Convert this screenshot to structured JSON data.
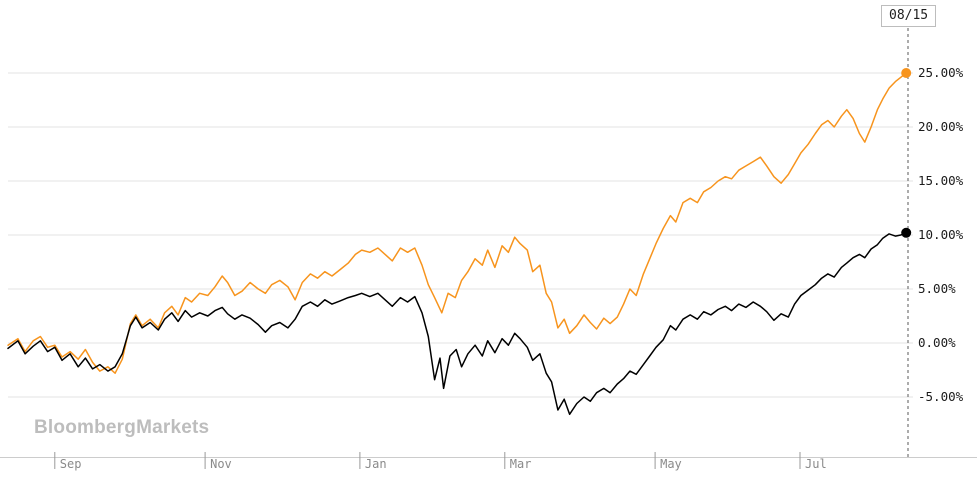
{
  "watermark": "BloombergMarkets",
  "colors": {
    "series_orange": "#f7941d",
    "series_black": "#000000",
    "grid": "#e3e3e3",
    "axis_line": "#cccccc",
    "tick_mark": "#9a9a9a",
    "x_tick_text": "#8a8a8a",
    "y_tick_text": "#1b1b1b",
    "cursor_line": "#5a5a5a",
    "watermark": "#bdbdbd"
  },
  "chart_data": {
    "type": "line",
    "title": "",
    "legend_position": "none",
    "grid": "horizontal",
    "cursor_date": "08/15",
    "y_axis": {
      "side": "right",
      "unit": "%",
      "range": [
        -8.5,
        28.5
      ],
      "ticks": [
        {
          "label": "25.00%",
          "value": 25
        },
        {
          "label": "20.00%",
          "value": 20
        },
        {
          "label": "15.00%",
          "value": 15
        },
        {
          "label": "10.00%",
          "value": 10
        },
        {
          "label": "5.00%",
          "value": 5
        },
        {
          "label": "0.00%",
          "value": 0
        },
        {
          "label": "-5.00%",
          "value": -5
        }
      ]
    },
    "x_axis": {
      "ticks": [
        {
          "label": "Sep",
          "x": 0.052
        },
        {
          "label": "Nov",
          "x": 0.219
        },
        {
          "label": "Jan",
          "x": 0.391
        },
        {
          "label": "Mar",
          "x": 0.552
        },
        {
          "label": "May",
          "x": 0.719
        },
        {
          "label": "Jul",
          "x": 0.88
        }
      ]
    },
    "series": [
      {
        "name": "orange",
        "color": "#f7941d",
        "end_value_pct": 25.0,
        "points": [
          [
            0.0,
            -0.2
          ],
          [
            0.011,
            0.4
          ],
          [
            0.019,
            -0.8
          ],
          [
            0.028,
            0.2
          ],
          [
            0.036,
            0.6
          ],
          [
            0.044,
            -0.4
          ],
          [
            0.052,
            -0.2
          ],
          [
            0.06,
            -1.3
          ],
          [
            0.069,
            -0.8
          ],
          [
            0.078,
            -1.5
          ],
          [
            0.086,
            -0.6
          ],
          [
            0.094,
            -1.8
          ],
          [
            0.102,
            -2.6
          ],
          [
            0.111,
            -2.2
          ],
          [
            0.119,
            -2.8
          ],
          [
            0.127,
            -1.5
          ],
          [
            0.136,
            1.8
          ],
          [
            0.142,
            2.6
          ],
          [
            0.149,
            1.6
          ],
          [
            0.158,
            2.2
          ],
          [
            0.167,
            1.4
          ],
          [
            0.174,
            2.8
          ],
          [
            0.182,
            3.4
          ],
          [
            0.189,
            2.6
          ],
          [
            0.197,
            4.2
          ],
          [
            0.204,
            3.8
          ],
          [
            0.213,
            4.6
          ],
          [
            0.222,
            4.4
          ],
          [
            0.23,
            5.2
          ],
          [
            0.238,
            6.2
          ],
          [
            0.244,
            5.6
          ],
          [
            0.252,
            4.4
          ],
          [
            0.26,
            4.8
          ],
          [
            0.269,
            5.6
          ],
          [
            0.278,
            5.0
          ],
          [
            0.286,
            4.6
          ],
          [
            0.293,
            5.4
          ],
          [
            0.302,
            5.8
          ],
          [
            0.311,
            5.2
          ],
          [
            0.319,
            4.0
          ],
          [
            0.327,
            5.6
          ],
          [
            0.336,
            6.4
          ],
          [
            0.344,
            6.0
          ],
          [
            0.352,
            6.6
          ],
          [
            0.36,
            6.2
          ],
          [
            0.369,
            6.8
          ],
          [
            0.378,
            7.4
          ],
          [
            0.386,
            8.2
          ],
          [
            0.393,
            8.6
          ],
          [
            0.402,
            8.4
          ],
          [
            0.411,
            8.8
          ],
          [
            0.419,
            8.2
          ],
          [
            0.427,
            7.6
          ],
          [
            0.436,
            8.8
          ],
          [
            0.444,
            8.4
          ],
          [
            0.452,
            8.8
          ],
          [
            0.46,
            7.2
          ],
          [
            0.467,
            5.4
          ],
          [
            0.474,
            4.2
          ],
          [
            0.482,
            2.8
          ],
          [
            0.489,
            4.6
          ],
          [
            0.497,
            4.2
          ],
          [
            0.504,
            5.8
          ],
          [
            0.511,
            6.6
          ],
          [
            0.519,
            7.8
          ],
          [
            0.527,
            7.2
          ],
          [
            0.533,
            8.6
          ],
          [
            0.541,
            7.0
          ],
          [
            0.549,
            9.0
          ],
          [
            0.556,
            8.4
          ],
          [
            0.563,
            9.8
          ],
          [
            0.569,
            9.2
          ],
          [
            0.577,
            8.6
          ],
          [
            0.583,
            6.6
          ],
          [
            0.591,
            7.2
          ],
          [
            0.598,
            4.6
          ],
          [
            0.604,
            3.8
          ],
          [
            0.611,
            1.4
          ],
          [
            0.618,
            2.2
          ],
          [
            0.624,
            0.9
          ],
          [
            0.632,
            1.6
          ],
          [
            0.64,
            2.6
          ],
          [
            0.647,
            1.9
          ],
          [
            0.654,
            1.3
          ],
          [
            0.662,
            2.3
          ],
          [
            0.669,
            1.8
          ],
          [
            0.677,
            2.4
          ],
          [
            0.684,
            3.6
          ],
          [
            0.691,
            5.0
          ],
          [
            0.698,
            4.4
          ],
          [
            0.706,
            6.4
          ],
          [
            0.713,
            7.8
          ],
          [
            0.72,
            9.2
          ],
          [
            0.728,
            10.6
          ],
          [
            0.736,
            11.8
          ],
          [
            0.742,
            11.2
          ],
          [
            0.75,
            13.0
          ],
          [
            0.758,
            13.4
          ],
          [
            0.766,
            13.0
          ],
          [
            0.773,
            14.0
          ],
          [
            0.781,
            14.4
          ],
          [
            0.789,
            15.0
          ],
          [
            0.797,
            15.4
          ],
          [
            0.804,
            15.2
          ],
          [
            0.812,
            16.0
          ],
          [
            0.82,
            16.4
          ],
          [
            0.828,
            16.8
          ],
          [
            0.836,
            17.2
          ],
          [
            0.843,
            16.4
          ],
          [
            0.851,
            15.4
          ],
          [
            0.859,
            14.8
          ],
          [
            0.867,
            15.6
          ],
          [
            0.874,
            16.6
          ],
          [
            0.881,
            17.6
          ],
          [
            0.889,
            18.4
          ],
          [
            0.897,
            19.4
          ],
          [
            0.904,
            20.2
          ],
          [
            0.911,
            20.6
          ],
          [
            0.918,
            20.0
          ],
          [
            0.926,
            21.0
          ],
          [
            0.932,
            21.6
          ],
          [
            0.939,
            20.8
          ],
          [
            0.946,
            19.4
          ],
          [
            0.952,
            18.6
          ],
          [
            0.959,
            20.0
          ],
          [
            0.966,
            21.6
          ],
          [
            0.972,
            22.6
          ],
          [
            0.979,
            23.6
          ],
          [
            0.986,
            24.2
          ],
          [
            0.992,
            24.6
          ],
          [
            0.998,
            25.0
          ]
        ]
      },
      {
        "name": "black",
        "color": "#000000",
        "end_value_pct": 10.2,
        "points": [
          [
            0.0,
            -0.5
          ],
          [
            0.011,
            0.2
          ],
          [
            0.019,
            -1.0
          ],
          [
            0.028,
            -0.3
          ],
          [
            0.036,
            0.2
          ],
          [
            0.044,
            -0.8
          ],
          [
            0.052,
            -0.4
          ],
          [
            0.06,
            -1.6
          ],
          [
            0.069,
            -1.0
          ],
          [
            0.078,
            -2.2
          ],
          [
            0.086,
            -1.4
          ],
          [
            0.094,
            -2.4
          ],
          [
            0.102,
            -2.0
          ],
          [
            0.111,
            -2.6
          ],
          [
            0.119,
            -2.2
          ],
          [
            0.127,
            -1.0
          ],
          [
            0.136,
            1.6
          ],
          [
            0.142,
            2.4
          ],
          [
            0.149,
            1.4
          ],
          [
            0.158,
            1.9
          ],
          [
            0.167,
            1.2
          ],
          [
            0.174,
            2.2
          ],
          [
            0.182,
            2.8
          ],
          [
            0.189,
            2.0
          ],
          [
            0.197,
            3.0
          ],
          [
            0.204,
            2.4
          ],
          [
            0.213,
            2.8
          ],
          [
            0.222,
            2.5
          ],
          [
            0.23,
            3.0
          ],
          [
            0.238,
            3.3
          ],
          [
            0.244,
            2.7
          ],
          [
            0.252,
            2.2
          ],
          [
            0.26,
            2.6
          ],
          [
            0.269,
            2.3
          ],
          [
            0.278,
            1.7
          ],
          [
            0.286,
            1.0
          ],
          [
            0.293,
            1.6
          ],
          [
            0.302,
            1.9
          ],
          [
            0.311,
            1.4
          ],
          [
            0.319,
            2.2
          ],
          [
            0.327,
            3.4
          ],
          [
            0.336,
            3.8
          ],
          [
            0.344,
            3.4
          ],
          [
            0.352,
            4.0
          ],
          [
            0.36,
            3.6
          ],
          [
            0.369,
            3.9
          ],
          [
            0.378,
            4.2
          ],
          [
            0.386,
            4.4
          ],
          [
            0.393,
            4.6
          ],
          [
            0.402,
            4.3
          ],
          [
            0.411,
            4.6
          ],
          [
            0.419,
            4.0
          ],
          [
            0.427,
            3.4
          ],
          [
            0.436,
            4.2
          ],
          [
            0.444,
            3.8
          ],
          [
            0.452,
            4.3
          ],
          [
            0.46,
            2.8
          ],
          [
            0.467,
            0.6
          ],
          [
            0.474,
            -3.4
          ],
          [
            0.48,
            -1.4
          ],
          [
            0.484,
            -4.2
          ],
          [
            0.491,
            -1.2
          ],
          [
            0.498,
            -0.6
          ],
          [
            0.504,
            -2.2
          ],
          [
            0.511,
            -1.0
          ],
          [
            0.519,
            -0.2
          ],
          [
            0.527,
            -1.2
          ],
          [
            0.533,
            0.2
          ],
          [
            0.541,
            -0.9
          ],
          [
            0.549,
            0.4
          ],
          [
            0.556,
            -0.2
          ],
          [
            0.563,
            0.9
          ],
          [
            0.569,
            0.4
          ],
          [
            0.577,
            -0.4
          ],
          [
            0.583,
            -1.6
          ],
          [
            0.591,
            -1.0
          ],
          [
            0.598,
            -2.8
          ],
          [
            0.604,
            -3.6
          ],
          [
            0.611,
            -6.2
          ],
          [
            0.618,
            -5.2
          ],
          [
            0.624,
            -6.6
          ],
          [
            0.632,
            -5.6
          ],
          [
            0.64,
            -5.0
          ],
          [
            0.647,
            -5.4
          ],
          [
            0.654,
            -4.6
          ],
          [
            0.662,
            -4.2
          ],
          [
            0.669,
            -4.6
          ],
          [
            0.677,
            -3.8
          ],
          [
            0.684,
            -3.3
          ],
          [
            0.691,
            -2.6
          ],
          [
            0.698,
            -2.9
          ],
          [
            0.706,
            -2.0
          ],
          [
            0.713,
            -1.2
          ],
          [
            0.72,
            -0.4
          ],
          [
            0.728,
            0.3
          ],
          [
            0.736,
            1.6
          ],
          [
            0.742,
            1.2
          ],
          [
            0.75,
            2.2
          ],
          [
            0.758,
            2.6
          ],
          [
            0.766,
            2.2
          ],
          [
            0.773,
            2.9
          ],
          [
            0.781,
            2.6
          ],
          [
            0.789,
            3.1
          ],
          [
            0.797,
            3.4
          ],
          [
            0.804,
            3.0
          ],
          [
            0.812,
            3.6
          ],
          [
            0.82,
            3.3
          ],
          [
            0.828,
            3.8
          ],
          [
            0.836,
            3.4
          ],
          [
            0.843,
            2.9
          ],
          [
            0.851,
            2.1
          ],
          [
            0.859,
            2.7
          ],
          [
            0.867,
            2.4
          ],
          [
            0.874,
            3.6
          ],
          [
            0.881,
            4.4
          ],
          [
            0.889,
            4.9
          ],
          [
            0.897,
            5.4
          ],
          [
            0.904,
            6.0
          ],
          [
            0.911,
            6.4
          ],
          [
            0.918,
            6.1
          ],
          [
            0.926,
            7.0
          ],
          [
            0.932,
            7.4
          ],
          [
            0.939,
            7.9
          ],
          [
            0.946,
            8.2
          ],
          [
            0.952,
            7.9
          ],
          [
            0.959,
            8.7
          ],
          [
            0.966,
            9.1
          ],
          [
            0.972,
            9.7
          ],
          [
            0.979,
            10.1
          ],
          [
            0.986,
            9.9
          ],
          [
            0.992,
            10.0
          ],
          [
            0.998,
            10.2
          ]
        ]
      }
    ]
  }
}
